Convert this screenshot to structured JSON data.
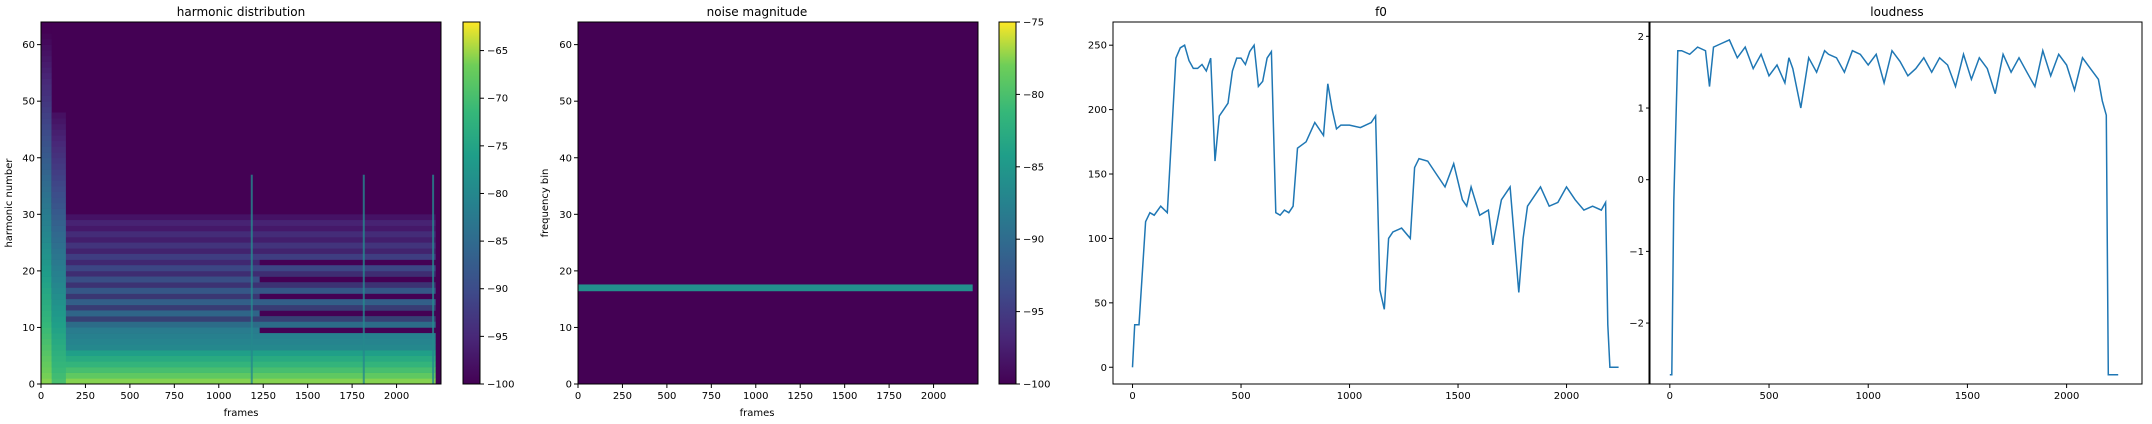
{
  "chart_data": [
    {
      "type": "heatmap",
      "title": "harmonic distribution",
      "xlabel": "frames",
      "ylabel": "harmonic number",
      "xlim": [
        0,
        2250
      ],
      "ylim": [
        0,
        64
      ],
      "xticks": [
        0,
        250,
        500,
        750,
        1000,
        1250,
        1500,
        1750,
        2000
      ],
      "yticks": [
        0,
        10,
        20,
        30,
        40,
        50,
        60
      ],
      "colormap": "viridis",
      "colorbar": {
        "min": -100,
        "max": -62,
        "ticks": [
          -100,
          -95,
          -90,
          -85,
          -80,
          -75,
          -70,
          -65
        ]
      },
      "description_bands": [
        {
          "harmonic": 0,
          "x_start": 0,
          "x_end": 2250,
          "db": -66
        },
        {
          "harmonic": 1,
          "x_start": 0,
          "x_end": 2250,
          "db": -68
        },
        {
          "harmonic": 2,
          "x_start": 0,
          "x_end": 2250,
          "db": -70
        },
        {
          "harmonic": 3,
          "x_start": 0,
          "x_end": 2250,
          "db": -72
        },
        {
          "harmonic": 4,
          "x_start": 0,
          "x_end": 2250,
          "db": -74
        },
        {
          "harmonic": 5,
          "x_start": 0,
          "x_end": 2250,
          "db": -76
        }
      ]
    },
    {
      "type": "heatmap",
      "title": "noise magnitude",
      "xlabel": "frames",
      "ylabel": "frequency bin",
      "xlim": [
        0,
        2250
      ],
      "ylim": [
        0,
        64
      ],
      "xticks": [
        0,
        250,
        500,
        750,
        1000,
        1250,
        1500,
        1750,
        2000
      ],
      "yticks": [
        0,
        10,
        20,
        30,
        40,
        50,
        60
      ],
      "colormap": "viridis",
      "colorbar": {
        "min": -100,
        "max": -75,
        "ticks": [
          -100,
          -95,
          -90,
          -85,
          -80,
          -75
        ]
      },
      "band": {
        "bin": 17,
        "x_start": 0,
        "x_end": 2220,
        "db": -86
      }
    },
    {
      "type": "line",
      "title": "f0",
      "xlabel": "",
      "ylabel": "",
      "xlim": [
        -90,
        2380
      ],
      "ylim": [
        -13,
        268
      ],
      "xticks": [
        0,
        500,
        1000,
        1500,
        2000
      ],
      "yticks": [
        0,
        50,
        100,
        150,
        200,
        250
      ],
      "color": "#1f77b4",
      "x": [
        0,
        10,
        30,
        60,
        80,
        100,
        130,
        160,
        180,
        200,
        220,
        240,
        260,
        280,
        300,
        320,
        340,
        360,
        380,
        400,
        420,
        440,
        460,
        480,
        500,
        520,
        540,
        560,
        580,
        600,
        620,
        640,
        660,
        680,
        700,
        720,
        740,
        760,
        800,
        840,
        880,
        900,
        920,
        940,
        960,
        1000,
        1050,
        1100,
        1120,
        1140,
        1160,
        1180,
        1200,
        1240,
        1280,
        1300,
        1320,
        1360,
        1400,
        1440,
        1480,
        1520,
        1540,
        1560,
        1600,
        1640,
        1660,
        1700,
        1740,
        1780,
        1800,
        1820,
        1840,
        1880,
        1920,
        1960,
        2000,
        2040,
        2080,
        2120,
        2160,
        2180,
        2190,
        2200,
        2240
      ],
      "y": [
        0,
        33,
        33,
        113,
        120,
        118,
        125,
        120,
        180,
        240,
        248,
        250,
        238,
        232,
        232,
        235,
        230,
        240,
        160,
        195,
        200,
        205,
        230,
        240,
        240,
        235,
        245,
        250,
        218,
        222,
        240,
        245,
        120,
        118,
        122,
        120,
        125,
        170,
        175,
        190,
        180,
        220,
        200,
        185,
        188,
        188,
        186,
        190,
        195,
        60,
        45,
        100,
        105,
        108,
        100,
        155,
        162,
        160,
        150,
        140,
        158,
        130,
        125,
        140,
        118,
        122,
        95,
        130,
        140,
        58,
        100,
        125,
        130,
        140,
        125,
        128,
        140,
        130,
        122,
        125,
        122,
        128,
        33,
        0,
        0
      ]
    },
    {
      "type": "line",
      "title": "loudness",
      "xlabel": "",
      "ylabel": "",
      "xlim": [
        -100,
        2380
      ],
      "ylim": [
        -2.85,
        2.2
      ],
      "xticks": [
        0,
        500,
        1000,
        1500,
        2000
      ],
      "yticks": [
        -2,
        -1,
        0,
        1,
        2
      ],
      "color": "#1f77b4",
      "x": [
        0,
        10,
        20,
        40,
        60,
        100,
        140,
        180,
        200,
        220,
        260,
        300,
        340,
        380,
        420,
        460,
        500,
        540,
        580,
        600,
        620,
        660,
        700,
        740,
        780,
        800,
        840,
        880,
        920,
        960,
        1000,
        1040,
        1080,
        1120,
        1160,
        1200,
        1240,
        1280,
        1320,
        1360,
        1400,
        1440,
        1480,
        1520,
        1560,
        1600,
        1640,
        1680,
        1720,
        1760,
        1800,
        1840,
        1880,
        1920,
        1960,
        2000,
        2040,
        2080,
        2120,
        2160,
        2180,
        2200,
        2210,
        2220,
        2260
      ],
      "y": [
        -2.72,
        -2.72,
        -0.3,
        1.8,
        1.8,
        1.75,
        1.85,
        1.8,
        1.3,
        1.85,
        1.9,
        1.95,
        1.7,
        1.85,
        1.55,
        1.75,
        1.45,
        1.6,
        1.35,
        1.7,
        1.55,
        1.0,
        1.7,
        1.5,
        1.8,
        1.75,
        1.7,
        1.5,
        1.8,
        1.75,
        1.6,
        1.75,
        1.35,
        1.8,
        1.65,
        1.45,
        1.55,
        1.7,
        1.5,
        1.7,
        1.6,
        1.3,
        1.75,
        1.4,
        1.7,
        1.55,
        1.2,
        1.75,
        1.5,
        1.7,
        1.5,
        1.3,
        1.8,
        1.45,
        1.75,
        1.6,
        1.25,
        1.7,
        1.55,
        1.4,
        1.1,
        0.9,
        -2.72,
        -2.72,
        -2.72
      ]
    }
  ]
}
